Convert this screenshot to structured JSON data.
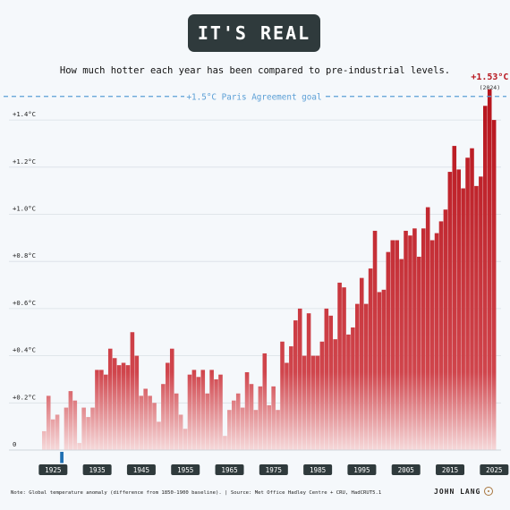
{
  "header": {
    "title": "IT'S REAL",
    "subtitle": "How much hotter each year has been compared to pre-industrial levels."
  },
  "footer": {
    "note": "Note: Global temperature anomaly (difference from 1850-1900 baseline).  |  Source: Met Office Hadley Centre + CRU, HadCRUT5.1",
    "author": "JOHN LANG"
  },
  "colors": {
    "bar_top": "#b7141c",
    "bar_bottom": "#f6d9da",
    "negative_bar": "#1f6fb2",
    "goal_line": "#5b9fd6",
    "highlight_label": "#b7141c",
    "axis_tag_bg": "#2f3a3c"
  },
  "chart_data": {
    "type": "bar",
    "title": "IT'S REAL",
    "subtitle": "How much hotter each year has been compared to pre-industrial levels.",
    "xlabel": "",
    "ylabel": "",
    "ylim": [
      0,
      1.53
    ],
    "x_start": 1923,
    "x_end": 2025,
    "ytick_labels": [
      "0",
      "+0.2°C",
      "+0.4°C",
      "+0.6°C",
      "+0.8°C",
      "+1.0°C",
      "+1.2°C",
      "+1.4°C"
    ],
    "ytick_values": [
      0,
      0.2,
      0.4,
      0.6,
      0.8,
      1.0,
      1.2,
      1.4
    ],
    "xtick_labels": [
      "1925",
      "1935",
      "1945",
      "1955",
      "1965",
      "1975",
      "1985",
      "1995",
      "2005",
      "2015",
      "2025"
    ],
    "xtick_values": [
      1925,
      1935,
      1945,
      1955,
      1965,
      1975,
      1985,
      1995,
      2005,
      2015,
      2025
    ],
    "reference_line": {
      "value": 1.5,
      "label": "+1.5°C Paris Agreement goal"
    },
    "highlight": {
      "year": 2024,
      "value_label": "+1.53°C",
      "year_label": "(2024)"
    },
    "grid": true,
    "legend": "none",
    "years": [
      1923,
      1924,
      1925,
      1926,
      1927,
      1928,
      1929,
      1930,
      1931,
      1932,
      1933,
      1934,
      1935,
      1936,
      1937,
      1938,
      1939,
      1940,
      1941,
      1942,
      1943,
      1944,
      1945,
      1946,
      1947,
      1948,
      1949,
      1950,
      1951,
      1952,
      1953,
      1954,
      1955,
      1956,
      1957,
      1958,
      1959,
      1960,
      1961,
      1962,
      1963,
      1964,
      1965,
      1966,
      1967,
      1968,
      1969,
      1970,
      1971,
      1972,
      1973,
      1974,
      1975,
      1976,
      1977,
      1978,
      1979,
      1980,
      1981,
      1982,
      1983,
      1984,
      1985,
      1986,
      1987,
      1988,
      1989,
      1990,
      1991,
      1992,
      1993,
      1994,
      1995,
      1996,
      1997,
      1998,
      1999,
      2000,
      2001,
      2002,
      2003,
      2004,
      2005,
      2006,
      2007,
      2008,
      2009,
      2010,
      2011,
      2012,
      2013,
      2014,
      2015,
      2016,
      2017,
      2018,
      2019,
      2020,
      2021,
      2022,
      2023,
      2024,
      2025
    ],
    "values": [
      0.08,
      0.23,
      0.13,
      0.15,
      -0.04,
      0.18,
      0.25,
      0.21,
      0.03,
      0.18,
      0.14,
      0.18,
      0.34,
      0.34,
      0.32,
      0.43,
      0.39,
      0.36,
      0.37,
      0.36,
      0.5,
      0.4,
      0.23,
      0.26,
      0.23,
      0.2,
      0.12,
      0.28,
      0.37,
      0.43,
      0.24,
      0.15,
      0.09,
      0.32,
      0.34,
      0.31,
      0.34,
      0.24,
      0.34,
      0.3,
      0.32,
      0.06,
      0.17,
      0.21,
      0.24,
      0.18,
      0.33,
      0.28,
      0.17,
      0.27,
      0.41,
      0.19,
      0.27,
      0.17,
      0.46,
      0.37,
      0.44,
      0.55,
      0.6,
      0.4,
      0.58,
      0.4,
      0.4,
      0.46,
      0.6,
      0.57,
      0.47,
      0.71,
      0.69,
      0.49,
      0.52,
      0.62,
      0.73,
      0.62,
      0.77,
      0.93,
      0.67,
      0.68,
      0.84,
      0.89,
      0.89,
      0.81,
      0.93,
      0.91,
      0.94,
      0.82,
      0.94,
      1.03,
      0.89,
      0.92,
      0.97,
      1.02,
      1.18,
      1.29,
      1.19,
      1.11,
      1.24,
      1.28,
      1.12,
      1.16,
      1.46,
      1.53,
      1.4
    ]
  }
}
